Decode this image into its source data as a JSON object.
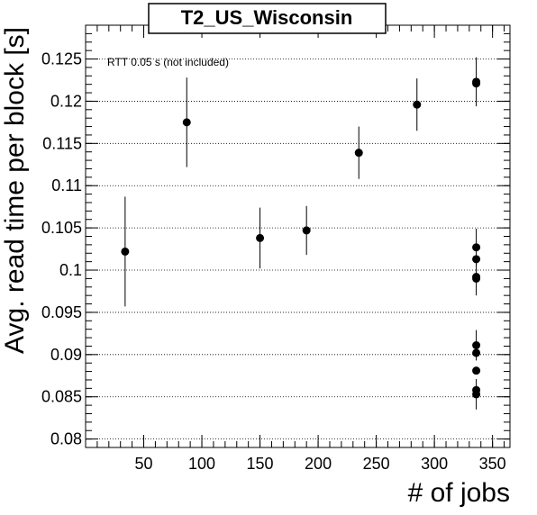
{
  "chart_data": {
    "type": "scatter",
    "title": "T2_US_Wisconsin",
    "xlabel": "# of jobs",
    "ylabel": "Avg. read time per block [s]",
    "annotation": "RTT 0.05 s (not included)",
    "xlim": [
      0,
      365
    ],
    "ylim": [
      0.079,
      0.129
    ],
    "x_ticks": [
      50,
      100,
      150,
      200,
      250,
      300,
      350
    ],
    "x_tick_labels": [
      "50",
      "100",
      "150",
      "200",
      "250",
      "300",
      "350"
    ],
    "y_ticks": [
      0.08,
      0.085,
      0.09,
      0.095,
      0.1,
      0.105,
      0.11,
      0.115,
      0.12,
      0.125
    ],
    "y_tick_labels": [
      "0.08",
      "0.085",
      "0.09",
      "0.095",
      "0.1",
      "0.105",
      "0.11",
      "0.115",
      "0.12",
      "0.125"
    ],
    "grid": "horizontal dotted",
    "marker_color": "#000000",
    "points": [
      {
        "x": 34,
        "y": 0.1022,
        "err": 0.0065
      },
      {
        "x": 87,
        "y": 0.1175,
        "err": 0.0053
      },
      {
        "x": 150,
        "y": 0.1038,
        "err": 0.0036
      },
      {
        "x": 190,
        "y": 0.1047,
        "err": 0.0029
      },
      {
        "x": 235,
        "y": 0.1139,
        "err": 0.0031
      },
      {
        "x": 285,
        "y": 0.1196,
        "err": 0.0031
      },
      {
        "x": 336,
        "y": 0.1223,
        "err": 0.0029
      },
      {
        "x": 336,
        "y": 0.1221,
        "err": 0.0
      },
      {
        "x": 336,
        "y": 0.1027,
        "err": 0.0022
      },
      {
        "x": 336,
        "y": 0.1013,
        "err": 0.0
      },
      {
        "x": 336,
        "y": 0.0992,
        "err": 0.0022
      },
      {
        "x": 336,
        "y": 0.099,
        "err": 0.0
      },
      {
        "x": 336,
        "y": 0.0911,
        "err": 0.0018
      },
      {
        "x": 336,
        "y": 0.0902,
        "err": 0.0
      },
      {
        "x": 336,
        "y": 0.0881,
        "err": 0.0
      },
      {
        "x": 336,
        "y": 0.0858,
        "err": 0.0
      },
      {
        "x": 336,
        "y": 0.0853,
        "err": 0.0018
      }
    ]
  }
}
